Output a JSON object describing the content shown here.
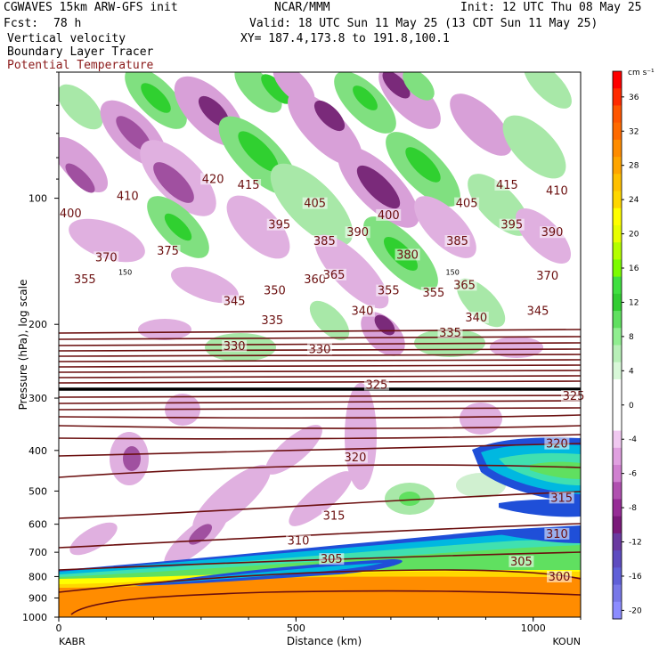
{
  "header": {
    "model": "CGWAVES 15km ARW-GFS init",
    "fcst_label": "Fcst:",
    "fcst_value": "78 h",
    "field1": "Vertical velocity",
    "field2": "Boundary Layer Tracer",
    "field3": "Potential Temperature",
    "center": "NCAR/MMM",
    "init": "Init: 12 UTC Thu 08 May 25",
    "valid": "Valid: 18 UTC Sun 11 May 25 (13 CDT Sun 11 May 25)",
    "xy": "XY= 187.4,173.8 to 191.8,100.1"
  },
  "chart_data": {
    "type": "cross-section",
    "xlabel": "Distance (km)",
    "ylabel": "Pressure (hPa), log scale",
    "x_range": [
      0,
      1100
    ],
    "y_range_hpa": [
      1000,
      50
    ],
    "y_scale": "log",
    "x_ticks": [
      {
        "v": 0,
        "label": "0"
      },
      {
        "v": 500,
        "label": "500"
      },
      {
        "v": 1000,
        "label": "1000"
      }
    ],
    "y_ticks": [
      {
        "v": 100,
        "label": "100"
      },
      {
        "v": 200,
        "label": "200"
      },
      {
        "v": 300,
        "label": "300"
      },
      {
        "v": 400,
        "label": "400"
      },
      {
        "v": 500,
        "label": "500"
      },
      {
        "v": 600,
        "label": "600"
      },
      {
        "v": 700,
        "label": "700"
      },
      {
        "v": 800,
        "label": "800"
      },
      {
        "v": 900,
        "label": "900"
      },
      {
        "v": 1000,
        "label": "1000"
      }
    ],
    "left_station": "KABR",
    "right_station": "KOUN",
    "colorbar": {
      "units": "cm s⁻¹",
      "levels": [
        {
          "label": "",
          "color": "#ff0000"
        },
        {
          "label": "36",
          "color": "#ff2a00"
        },
        {
          "label": "",
          "color": "#ff5500"
        },
        {
          "label": "32",
          "color": "#ff6a00"
        },
        {
          "label": "",
          "color": "#ff8c00"
        },
        {
          "label": "28",
          "color": "#ffa500"
        },
        {
          "label": "",
          "color": "#ffc000"
        },
        {
          "label": "24",
          "color": "#ffd700"
        },
        {
          "label": "",
          "color": "#ffff00"
        },
        {
          "label": "20",
          "color": "#e8ff00"
        },
        {
          "label": "",
          "color": "#b4ff00"
        },
        {
          "label": "16",
          "color": "#7cfc00"
        },
        {
          "label": "",
          "color": "#40e040"
        },
        {
          "label": "12",
          "color": "#32cd32"
        },
        {
          "label": "",
          "color": "#60e060"
        },
        {
          "label": "8",
          "color": "#90ee90"
        },
        {
          "label": "",
          "color": "#b8f0b8"
        },
        {
          "label": "4",
          "color": "#d8f8d8"
        },
        {
          "label": "",
          "color": "#ffffff"
        },
        {
          "label": "0",
          "color": "#ffffff"
        },
        {
          "label": "",
          "color": "#ffffff"
        },
        {
          "label": "-4",
          "color": "#f0c8f0"
        },
        {
          "label": "",
          "color": "#e0a0e0"
        },
        {
          "label": "-6",
          "color": "#d080d0"
        },
        {
          "label": "",
          "color": "#b050b0"
        },
        {
          "label": "-8",
          "color": "#962c96"
        },
        {
          "label": "",
          "color": "#7a1a7a"
        },
        {
          "label": "-12",
          "color": "#6a3aa0"
        },
        {
          "label": "",
          "color": "#5e4cc0"
        },
        {
          "label": "-16",
          "color": "#6060d8"
        },
        {
          "label": "",
          "color": "#7878e8"
        },
        {
          "label": "-20",
          "color": "#8c8cff"
        }
      ]
    },
    "theta_contour_labels": [
      {
        "text": "410",
        "x": 145,
        "p": 100
      },
      {
        "text": "420",
        "x": 325,
        "p": 91
      },
      {
        "text": "415",
        "x": 400,
        "p": 94
      },
      {
        "text": "415",
        "x": 945,
        "p": 94
      },
      {
        "text": "410",
        "x": 1050,
        "p": 97
      },
      {
        "text": "400",
        "x": 25,
        "p": 110
      },
      {
        "text": "405",
        "x": 540,
        "p": 104
      },
      {
        "text": "405",
        "x": 860,
        "p": 104
      },
      {
        "text": "400",
        "x": 695,
        "p": 111
      },
      {
        "text": "395",
        "x": 465,
        "p": 117
      },
      {
        "text": "395",
        "x": 955,
        "p": 117
      },
      {
        "text": "390",
        "x": 630,
        "p": 122
      },
      {
        "text": "390",
        "x": 1040,
        "p": 122
      },
      {
        "text": "385",
        "x": 560,
        "p": 128
      },
      {
        "text": "385",
        "x": 840,
        "p": 128
      },
      {
        "text": "375",
        "x": 230,
        "p": 135
      },
      {
        "text": "370",
        "x": 100,
        "p": 140
      },
      {
        "text": "380",
        "x": 735,
        "p": 138
      },
      {
        "text": "370",
        "x": 1030,
        "p": 155
      },
      {
        "text": "355",
        "x": 55,
        "p": 158
      },
      {
        "text": "360",
        "x": 540,
        "p": 158
      },
      {
        "text": "365",
        "x": 580,
        "p": 154
      },
      {
        "text": "365",
        "x": 855,
        "p": 163
      },
      {
        "text": "355",
        "x": 695,
        "p": 168
      },
      {
        "text": "355",
        "x": 790,
        "p": 170
      },
      {
        "text": "350",
        "x": 455,
        "p": 168
      },
      {
        "text": "345",
        "x": 370,
        "p": 178
      },
      {
        "text": "345",
        "x": 1010,
        "p": 188
      },
      {
        "text": "340",
        "x": 640,
        "p": 188
      },
      {
        "text": "340",
        "x": 880,
        "p": 195
      },
      {
        "text": "335",
        "x": 450,
        "p": 198
      },
      {
        "text": "335",
        "x": 825,
        "p": 212
      },
      {
        "text": "330",
        "x": 550,
        "p": 232
      },
      {
        "text": "330",
        "x": 370,
        "p": 228
      },
      {
        "text": "325",
        "x": 670,
        "p": 282
      },
      {
        "text": "325",
        "x": 1085,
        "p": 300
      },
      {
        "text": "320",
        "x": 625,
        "p": 420
      },
      {
        "text": "320",
        "x": 1050,
        "p": 390
      },
      {
        "text": "315",
        "x": 580,
        "p": 580
      },
      {
        "text": "315",
        "x": 1060,
        "p": 525
      },
      {
        "text": "310",
        "x": 1050,
        "p": 640
      },
      {
        "text": "310",
        "x": 505,
        "p": 665
      },
      {
        "text": "305",
        "x": 575,
        "p": 735
      },
      {
        "text": "305",
        "x": 975,
        "p": 745
      },
      {
        "text": "300",
        "x": 1055,
        "p": 810
      }
    ],
    "tropopause_labels": [
      {
        "text": "150",
        "x": 140,
        "p": 150
      },
      {
        "text": "150",
        "x": 830,
        "p": 150
      }
    ]
  }
}
